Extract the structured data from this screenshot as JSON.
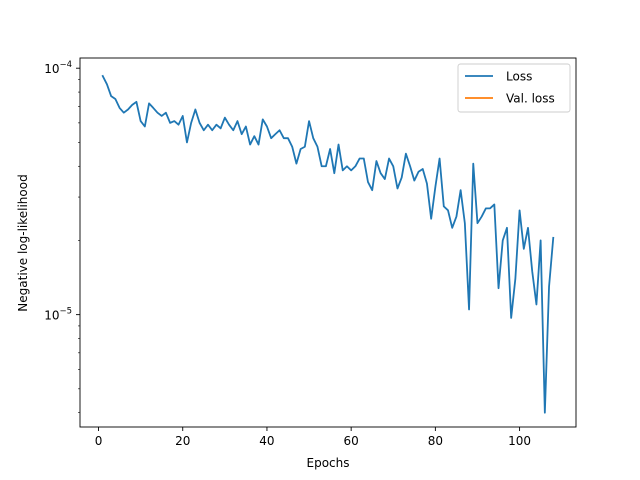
{
  "chart_data": {
    "type": "line",
    "title": "",
    "xlabel": "Epochs",
    "ylabel": "Negative log-likelihood",
    "y_scale": "log",
    "xlim": [
      -4.4,
      113.4
    ],
    "ylim": [
      3.5e-06,
      0.00011
    ],
    "x_ticks": [
      0,
      20,
      40,
      60,
      80,
      100
    ],
    "x_tick_labels": [
      "0",
      "20",
      "40",
      "60",
      "80",
      "100"
    ],
    "y_ticks": [
      1e-05,
      0.0001
    ],
    "y_tick_labels": [
      {
        "base": "10",
        "exp": "−5"
      },
      {
        "base": "10",
        "exp": "−4"
      }
    ],
    "grid": false,
    "legend_position": "top-right",
    "colors": {
      "loss": "#1f77b4",
      "val_loss": "#ff7f0e"
    },
    "series": [
      {
        "name": "Loss",
        "color": "#1f77b4",
        "x": [
          1,
          2,
          3,
          4,
          5,
          6,
          7,
          8,
          9,
          10,
          11,
          12,
          13,
          14,
          15,
          16,
          17,
          18,
          19,
          20,
          21,
          22,
          23,
          24,
          25,
          26,
          27,
          28,
          29,
          30,
          31,
          32,
          33,
          34,
          35,
          36,
          37,
          38,
          39,
          40,
          41,
          42,
          43,
          44,
          45,
          46,
          47,
          48,
          49,
          50,
          51,
          52,
          53,
          54,
          55,
          56,
          57,
          58,
          59,
          60,
          61,
          62,
          63,
          64,
          65,
          66,
          67,
          68,
          69,
          70,
          71,
          72,
          73,
          74,
          75,
          76,
          77,
          78,
          79,
          80,
          81,
          82,
          83,
          84,
          85,
          86,
          87,
          88,
          89,
          90,
          91,
          92,
          93,
          94,
          95,
          96,
          97,
          98,
          99,
          100,
          101,
          102,
          103,
          104,
          105,
          106,
          107,
          108
        ],
        "y": [
          9.3e-05,
          8.6e-05,
          7.7e-05,
          7.5e-05,
          6.9e-05,
          6.6e-05,
          6.8e-05,
          7.1e-05,
          7.3e-05,
          6.1e-05,
          5.8e-05,
          7.2e-05,
          6.9e-05,
          6.6e-05,
          6.4e-05,
          6.6e-05,
          6e-05,
          6.1e-05,
          5.9e-05,
          6.4e-05,
          5e-05,
          6e-05,
          6.8e-05,
          6e-05,
          5.6e-05,
          5.9e-05,
          5.6e-05,
          5.9e-05,
          5.7e-05,
          6.3e-05,
          5.9e-05,
          5.6e-05,
          6.1e-05,
          5.4e-05,
          5.8e-05,
          4.9e-05,
          5.3e-05,
          4.9e-05,
          6.2e-05,
          5.8e-05,
          5.2e-05,
          5.4e-05,
          5.6e-05,
          5.2e-05,
          5.2e-05,
          4.8e-05,
          4.1e-05,
          4.7e-05,
          4.8e-05,
          6.1e-05,
          5.2e-05,
          4.8e-05,
          4e-05,
          4e-05,
          4.7e-05,
          3.75e-05,
          4.9e-05,
          3.85e-05,
          4e-05,
          3.85e-05,
          4e-05,
          4.3e-05,
          4.3e-05,
          3.45e-05,
          3.2e-05,
          4.2e-05,
          3.75e-05,
          3.55e-05,
          4.3e-05,
          4e-05,
          3.25e-05,
          3.6e-05,
          4.5e-05,
          4e-05,
          3.5e-05,
          3.8e-05,
          3.9e-05,
          3.4e-05,
          2.45e-05,
          3.3e-05,
          4.3e-05,
          2.75e-05,
          2.65e-05,
          2.25e-05,
          2.5e-05,
          3.2e-05,
          2.35e-05,
          1.05e-05,
          4.1e-05,
          2.35e-05,
          2.5e-05,
          2.7e-05,
          2.7e-05,
          2.8e-05,
          1.28e-05,
          2e-05,
          2.25e-05,
          9.7e-06,
          1.4e-05,
          2.65e-05,
          1.85e-05,
          2.25e-05,
          1.5e-05,
          1.1e-05,
          2e-05,
          4e-06,
          1.3e-05,
          2.05e-05
        ]
      },
      {
        "name": "Val. loss",
        "color": "#ff7f0e",
        "x": [],
        "y": []
      }
    ]
  }
}
